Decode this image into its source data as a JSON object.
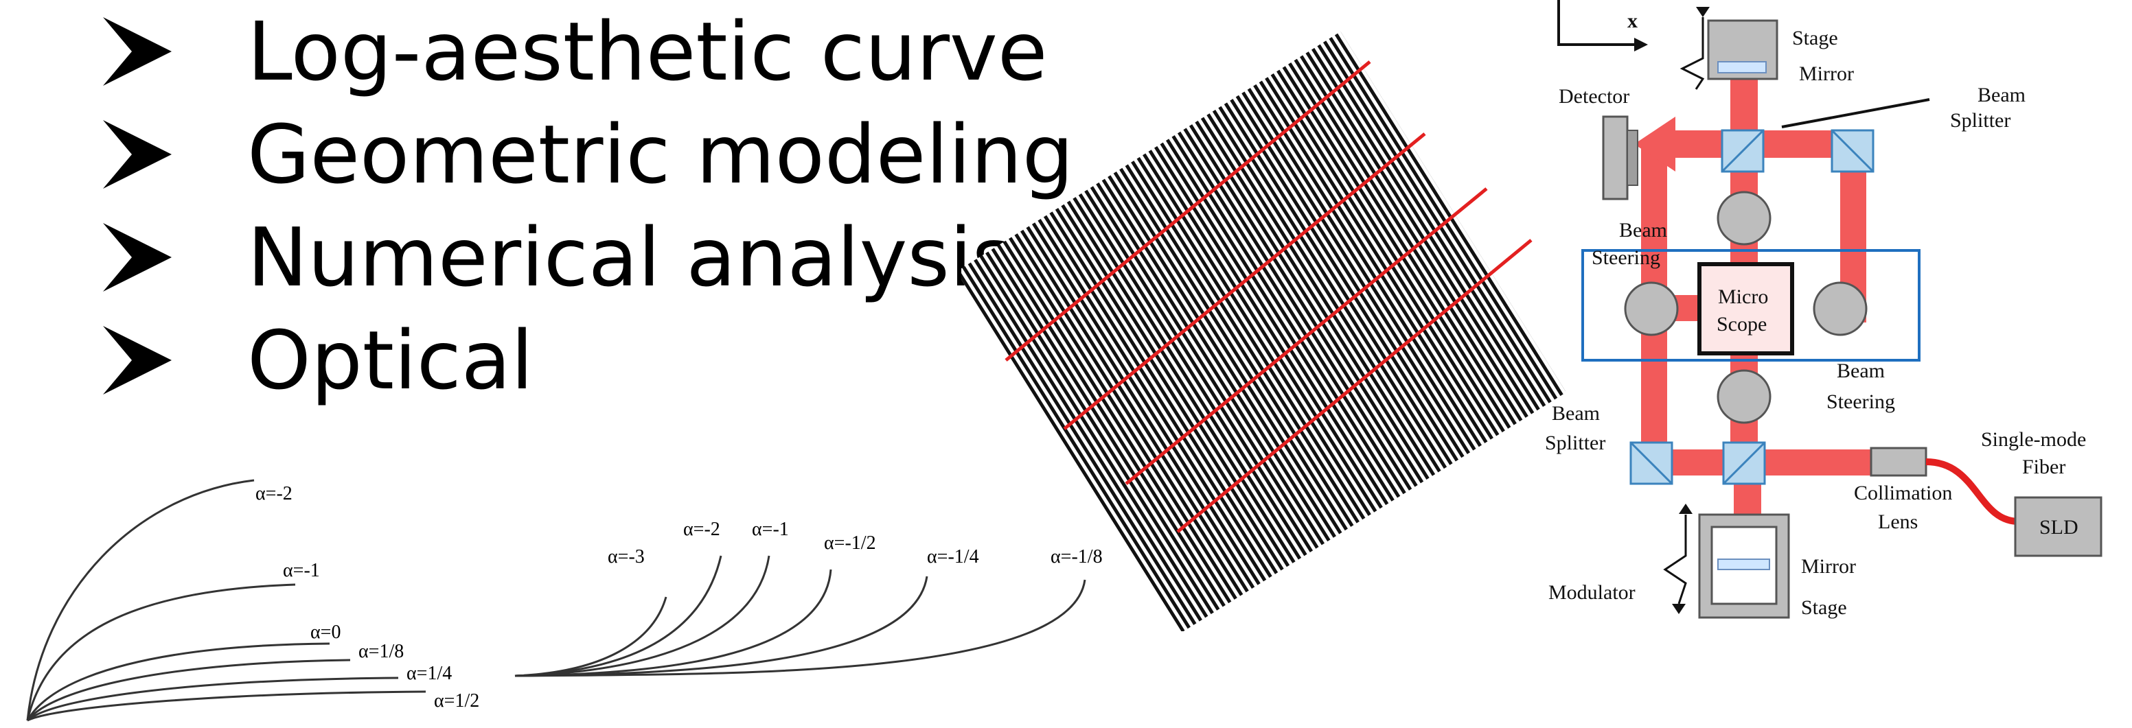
{
  "bullets": [
    "Log-aesthetic curve",
    "Geometric modeling",
    "Numerical analysis",
    "Optical"
  ],
  "curves_left": {
    "labels": [
      "α=-2",
      "α=-1",
      "α=0",
      "α=1/8",
      "α=1/4",
      "α=1/2"
    ]
  },
  "curves_right": {
    "labels": [
      "α=-3",
      "α=-2",
      "α=-1",
      "α=-1/2",
      "α=-1/4",
      "α=-1/8"
    ]
  },
  "optics": {
    "axis_x": "x",
    "stage_top": "Stage",
    "mirror_top": "Mirror",
    "detector": "Detector",
    "beam_splitter_top_1": "Beam",
    "beam_splitter_top_2": "Splitter",
    "beam_steering_left_1": "Beam",
    "beam_steering_left_2": "Steering",
    "micro": "Micro",
    "scope": "Scope",
    "beam_steering_right_1": "Beam",
    "beam_steering_right_2": "Steering",
    "beam_splitter_left_1": "Beam",
    "beam_splitter_left_2": "Splitter",
    "single_mode_1": "Single-mode",
    "single_mode_2": "Fiber",
    "collimation_1": "Collimation",
    "collimation_2": "Lens",
    "sld": "SLD",
    "mirror_bottom": "Mirror",
    "modulator": "Modulator",
    "stage_bottom": "Stage",
    "colors": {
      "beam": "#f25a5a",
      "box_blue": "#1f6fbf",
      "gray": "#bdbdbd"
    }
  }
}
